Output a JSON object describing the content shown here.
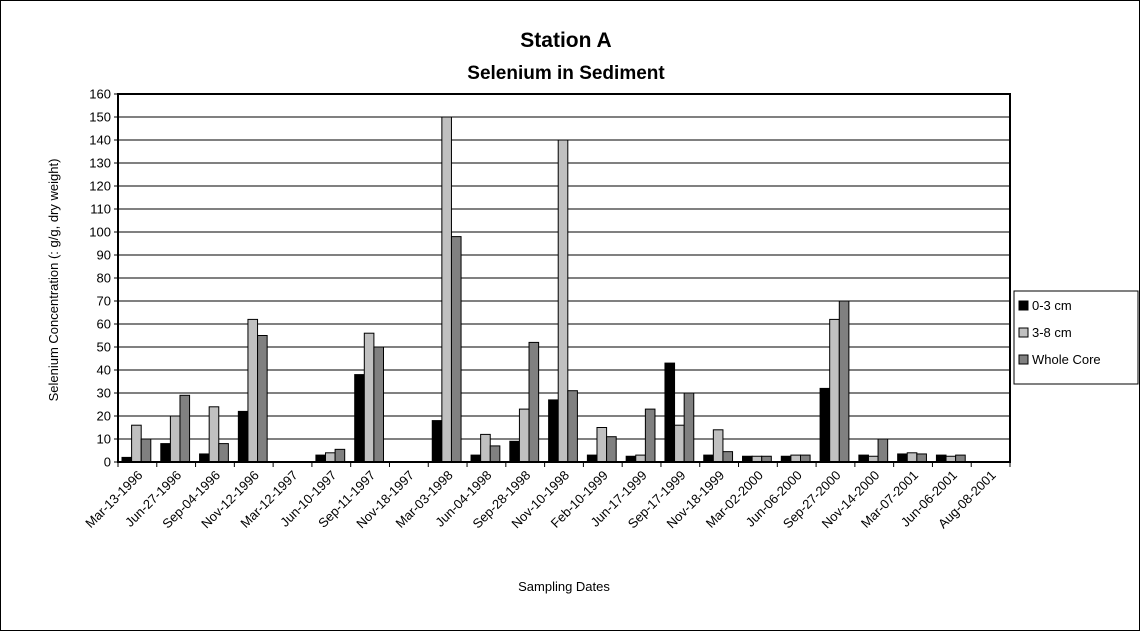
{
  "chart_data": {
    "type": "bar",
    "title": "Station A",
    "subtitle": "Selenium in Sediment",
    "xlabel": "Sampling Dates",
    "ylabel": "Selenium Concentration (: g/g, dry weight)",
    "ylim": [
      0,
      160
    ],
    "ytick_step": 10,
    "grid": true,
    "legend_position": "right",
    "categories": [
      "Mar-13-1996",
      "Jun-27-1996",
      "Sep-04-1996",
      "Nov-12-1996",
      "Mar-12-1997",
      "Jun-10-1997",
      "Sep-11-1997",
      "Nov-18-1997",
      "Mar-03-1998",
      "Jun-04-1998",
      "Sep-28-1998",
      "Nov-10-1998",
      "Feb-10-1999",
      "Jun-17-1999",
      "Sep-17-1999",
      "Nov-18-1999",
      "Mar-02-2000",
      "Jun-06-2000",
      "Sep-27-2000",
      "Nov-14-2000",
      "Mar-07-2001",
      "Jun-06-2001",
      "Aug-08-2001"
    ],
    "series": [
      {
        "name": "0-3 cm",
        "color": "#000000",
        "values": [
          2,
          8,
          3.5,
          22,
          0,
          3,
          38,
          0,
          18,
          3,
          9,
          27,
          3,
          2.5,
          43,
          3,
          2.5,
          2.5,
          32,
          3,
          3.5,
          3,
          0
        ]
      },
      {
        "name": "3-8 cm",
        "color": "#c0c0c0",
        "values": [
          16,
          20,
          24,
          62,
          0,
          4,
          56,
          0,
          150,
          12,
          23,
          140,
          15,
          3,
          16,
          14,
          2.5,
          3,
          62,
          2.5,
          4,
          2.5,
          0
        ]
      },
      {
        "name": "Whole Core",
        "color": "#808080",
        "values": [
          10,
          29,
          8,
          55,
          0,
          5.5,
          50,
          0,
          98,
          7,
          52,
          31,
          11,
          23,
          30,
          4.5,
          2.5,
          3,
          70,
          10,
          3.5,
          3,
          0
        ]
      }
    ]
  }
}
